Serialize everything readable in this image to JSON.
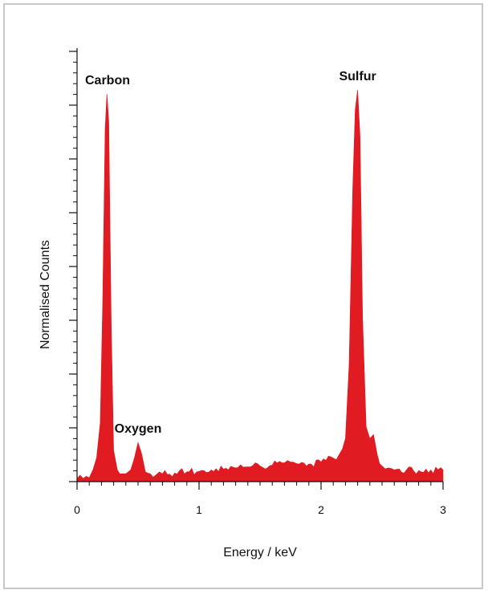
{
  "chart_data": {
    "type": "area",
    "title": "",
    "xlabel": "Energy / keV",
    "ylabel": "Normalised Counts",
    "xlim": [
      0,
      3
    ],
    "ylim": [
      0,
      1.0
    ],
    "x_ticks": [
      0,
      1,
      2,
      3
    ],
    "x_tick_labels": [
      "0",
      "1",
      "2",
      "3"
    ],
    "y_tick_labels_shown": false,
    "grid": false,
    "fill_color": "#e11b22",
    "series": [
      {
        "x": [
          0.0,
          0.05,
          0.1,
          0.13,
          0.16,
          0.19,
          0.21,
          0.23,
          0.245,
          0.26,
          0.28,
          0.3,
          0.33,
          0.37,
          0.4,
          0.44,
          0.47,
          0.5,
          0.53,
          0.56,
          0.6,
          0.65,
          0.7,
          0.8,
          0.9,
          1.0,
          1.1,
          1.2,
          1.3,
          1.4,
          1.5,
          1.6,
          1.7,
          1.75,
          1.8,
          1.9,
          2.0,
          2.1,
          2.15,
          2.2,
          2.23,
          2.26,
          2.28,
          2.3,
          2.32,
          2.34,
          2.37,
          2.4,
          2.43,
          2.46,
          2.5,
          2.55,
          2.6,
          2.7,
          2.8,
          2.9,
          3.0
        ],
        "y": [
          0.008,
          0.008,
          0.01,
          0.03,
          0.06,
          0.15,
          0.45,
          0.9,
          0.99,
          0.92,
          0.4,
          0.08,
          0.03,
          0.02,
          0.02,
          0.03,
          0.06,
          0.1,
          0.07,
          0.025,
          0.02,
          0.018,
          0.02,
          0.022,
          0.025,
          0.026,
          0.03,
          0.032,
          0.035,
          0.038,
          0.04,
          0.042,
          0.048,
          0.05,
          0.046,
          0.045,
          0.05,
          0.06,
          0.07,
          0.11,
          0.3,
          0.75,
          0.95,
          1.0,
          0.88,
          0.42,
          0.14,
          0.11,
          0.12,
          0.07,
          0.04,
          0.035,
          0.03,
          0.03,
          0.028,
          0.03,
          0.03
        ]
      }
    ],
    "annotations": [
      {
        "text": "Carbon",
        "x": 0.25,
        "y": 0.99
      },
      {
        "text": "Oxygen",
        "x": 0.5,
        "y": 0.1
      },
      {
        "text": "Sulfur",
        "x": 2.3,
        "y": 1.0
      }
    ]
  }
}
